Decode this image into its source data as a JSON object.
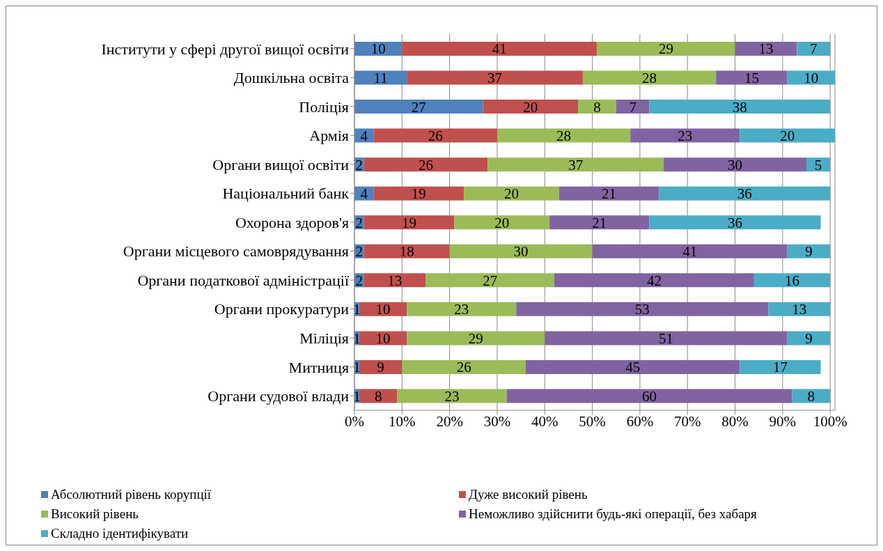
{
  "chart_data": {
    "type": "bar",
    "orientation": "horizontal",
    "stacked": true,
    "data_labels": true,
    "grid": "x",
    "legend": "bottom",
    "categories": [
      "Інститути у сфері другої вищої освіти",
      "Дошкільна освіта",
      "Поліція",
      "Армія",
      "Органи вищої освіти",
      "Національний банк",
      "Охорона здоров'я",
      "Органи місцевого самоврядування",
      "Органи податкової адміністрації",
      "Органи прокуратури",
      "Міліція",
      "Митниця",
      "Органи судової влади"
    ],
    "xlim": [
      0,
      101
    ],
    "xticks": [
      {
        "value": 0,
        "label": "0%"
      },
      {
        "value": 10,
        "label": "10%"
      },
      {
        "value": 20,
        "label": "20%"
      },
      {
        "value": 30,
        "label": "30%"
      },
      {
        "value": 40,
        "label": "40%"
      },
      {
        "value": 50,
        "label": "50%"
      },
      {
        "value": 60,
        "label": "60%"
      },
      {
        "value": 70,
        "label": "70%"
      },
      {
        "value": 80,
        "label": "80%"
      },
      {
        "value": 90,
        "label": "90%"
      },
      {
        "value": 100,
        "label": "100%"
      }
    ],
    "series": [
      {
        "name": "Абсолютний рівень корупції",
        "color": "#4f81bd",
        "values": [
          10,
          11,
          27,
          4,
          2,
          4,
          2,
          2,
          2,
          1,
          1,
          1,
          1
        ]
      },
      {
        "name": "Дуже високий рівень",
        "color": "#c0504d",
        "values": [
          41,
          37,
          20,
          26,
          26,
          19,
          19,
          18,
          13,
          10,
          10,
          9,
          8
        ]
      },
      {
        "name": "Високий рівень",
        "color": "#9bbb59",
        "values": [
          29,
          28,
          8,
          28,
          37,
          20,
          20,
          30,
          27,
          23,
          29,
          26,
          23
        ]
      },
      {
        "name": "Неможливо здійснити будь-які операції, без хабаря",
        "color": "#8064a2",
        "values": [
          13,
          15,
          7,
          23,
          30,
          21,
          21,
          41,
          42,
          53,
          51,
          45,
          60
        ]
      },
      {
        "name": "Складно ідентифікувати",
        "color": "#4bacc6",
        "values": [
          7,
          10,
          38,
          20,
          5,
          36,
          36,
          9,
          16,
          13,
          9,
          17,
          8
        ]
      }
    ]
  }
}
